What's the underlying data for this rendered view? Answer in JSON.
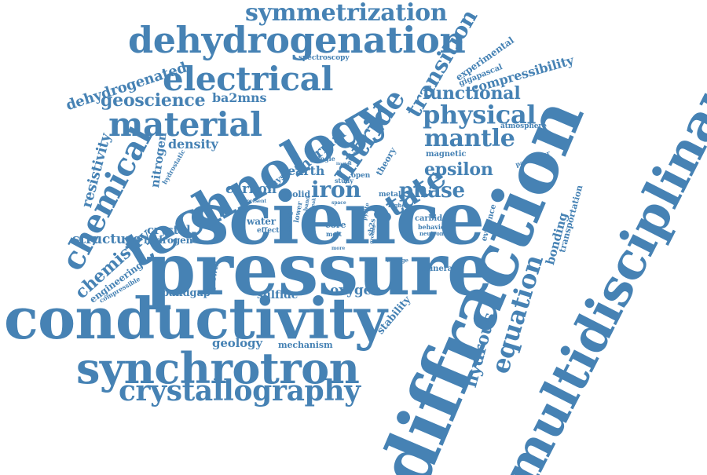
{
  "cloud": {
    "color": "#4682b4",
    "words": [
      {
        "text": "pressure"
      },
      {
        "text": "science"
      },
      {
        "text": "diffraction"
      },
      {
        "text": "multidisciplinary"
      },
      {
        "text": "conductivity"
      },
      {
        "text": "technology"
      },
      {
        "text": "synchrotron"
      },
      {
        "text": "dehydrogenation"
      },
      {
        "text": "crystallography"
      },
      {
        "text": "electrical"
      },
      {
        "text": "material"
      },
      {
        "text": "chemical"
      },
      {
        "text": "symmetrization"
      },
      {
        "text": "nitride"
      },
      {
        "text": "state"
      },
      {
        "text": "physical"
      },
      {
        "text": "equation"
      },
      {
        "text": "transition"
      },
      {
        "text": "mantle"
      },
      {
        "text": "iron"
      },
      {
        "text": "phase"
      },
      {
        "text": "functional"
      },
      {
        "text": "geoscience"
      },
      {
        "text": "dehydrogenated"
      },
      {
        "text": "chemistry"
      },
      {
        "text": "resistivity"
      },
      {
        "text": "epsilon"
      },
      {
        "text": "hydrous"
      },
      {
        "text": "compressibility"
      },
      {
        "text": "ba2mns"
      },
      {
        "text": "density"
      },
      {
        "text": "nitrogen"
      },
      {
        "text": "thermal"
      },
      {
        "text": "earth"
      },
      {
        "text": "carbon"
      },
      {
        "text": "crystal"
      },
      {
        "text": "structure"
      },
      {
        "text": "hydrogen"
      },
      {
        "text": "engineering"
      },
      {
        "text": "bandgap"
      },
      {
        "text": "sulfide"
      },
      {
        "text": "oxygen"
      },
      {
        "text": "geology"
      },
      {
        "text": "mechanism"
      },
      {
        "text": "stability"
      },
      {
        "text": "bonding"
      },
      {
        "text": "transportation"
      },
      {
        "text": "experimental"
      },
      {
        "text": "gigapascal"
      },
      {
        "text": "spectroscopy"
      },
      {
        "text": "atmosphere"
      },
      {
        "text": "evidence"
      },
      {
        "text": "parameter"
      },
      {
        "text": "physic"
      },
      {
        "text": "theory"
      },
      {
        "text": "magnetic"
      },
      {
        "text": "solid"
      },
      {
        "text": "study"
      },
      {
        "text": "metal"
      },
      {
        "text": "open"
      },
      {
        "text": "single"
      },
      {
        "text": "water"
      },
      {
        "text": "effect"
      },
      {
        "text": "core"
      },
      {
        "text": "melt"
      },
      {
        "text": "growth"
      },
      {
        "text": "compressible"
      },
      {
        "text": "mineral"
      },
      {
        "text": "carbide"
      },
      {
        "text": "behavior"
      },
      {
        "text": "neutron"
      },
      {
        "text": "change"
      },
      {
        "text": "hydrostatic"
      },
      {
        "text": "method"
      },
      {
        "text": "lower"
      },
      {
        "text": "sb2s"
      },
      {
        "text": "higher"
      },
      {
        "text": "present"
      },
      {
        "text": "band"
      },
      {
        "text": "weak"
      },
      {
        "text": "volume"
      },
      {
        "text": "pyrite"
      },
      {
        "text": "space"
      },
      {
        "text": "ground"
      },
      {
        "text": "limited"
      },
      {
        "text": "more"
      }
    ]
  }
}
